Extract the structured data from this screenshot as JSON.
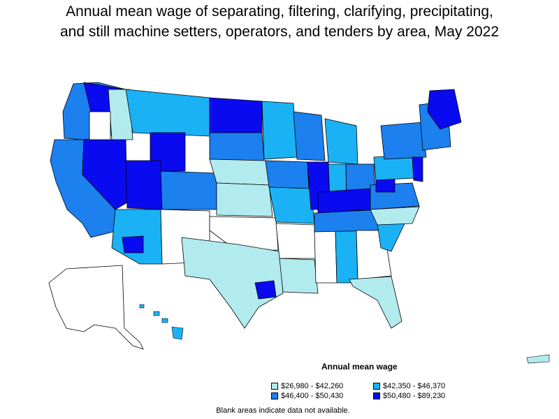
{
  "title": {
    "line1": "Annual mean wage of separating, filtering, clarifying, precipitating,",
    "line2": "and still machine setters, operators, and tenders by area, May 2022"
  },
  "legend": {
    "title": "Annual mean wage",
    "items": [
      {
        "label": "$26,980 - $42,260",
        "color": "#b2ebee"
      },
      {
        "label": "$42,350 - $46,370",
        "color": "#1ab2f5"
      },
      {
        "label": "$46,400 - $50,430",
        "color": "#1c80ef"
      },
      {
        "label": "$50,480 - $89,230",
        "color": "#0a0af1"
      }
    ]
  },
  "footnote": "Blank areas indicate data not available.",
  "colors": {
    "blank": "#ffffff",
    "border": "#000000",
    "tier1": "#b2ebee",
    "tier2": "#1ab2f5",
    "tier3": "#1c80ef",
    "tier4": "#0a0af1"
  }
}
